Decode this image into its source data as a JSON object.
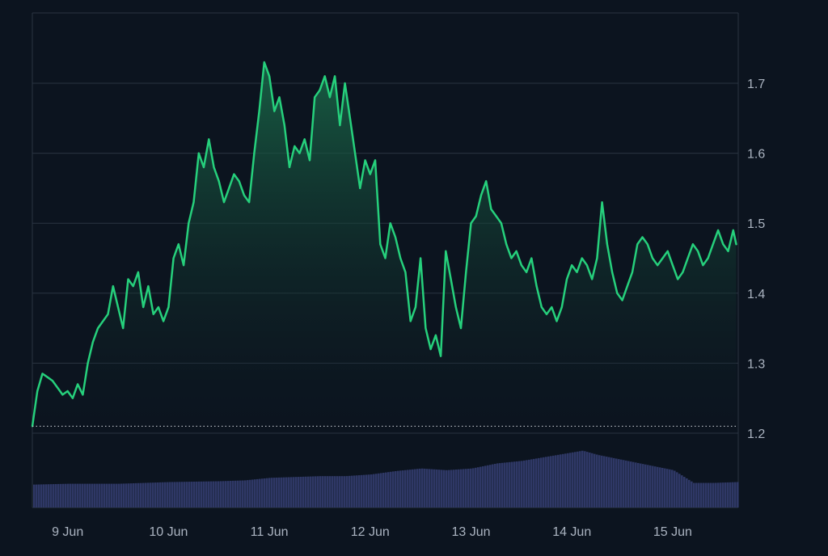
{
  "chart_data": {
    "type": "area",
    "title": "",
    "xlabel": "",
    "ylabel": "",
    "x_tick_labels": [
      "9 Jun",
      "10 Jun",
      "11 Jun",
      "12 Jun",
      "13 Jun",
      "14 Jun",
      "15 Jun"
    ],
    "y_tick_labels": [
      "1.2",
      "1.3",
      "1.4",
      "1.5",
      "1.6",
      "1.7"
    ],
    "y_ticks": [
      1.2,
      1.3,
      1.4,
      1.5,
      1.6,
      1.7
    ],
    "ylim": [
      1.1,
      1.8
    ],
    "xlim": [
      8.65,
      15.65
    ],
    "y_axis_position": "right",
    "grid": "horizontal",
    "baseline_value": 1.21,
    "colors": {
      "line": "#26d07c",
      "area_top": "#1a6b4a",
      "volume": "#2f3866",
      "grid": "#2a3442",
      "text": "#aab3c0",
      "baseline": "#d0d4da"
    },
    "series": [
      {
        "x": [
          8.65,
          8.7,
          8.75,
          8.8,
          8.85,
          8.9,
          8.95,
          9.0,
          9.05,
          9.1,
          9.15,
          9.2,
          9.25,
          9.3,
          9.4,
          9.45,
          9.5,
          9.55,
          9.6,
          9.65,
          9.7,
          9.75,
          9.8,
          9.85,
          9.9,
          9.95,
          10.0,
          10.05,
          10.1,
          10.15,
          10.2,
          10.25,
          10.3,
          10.35,
          10.4,
          10.45,
          10.5,
          10.55,
          10.6,
          10.65,
          10.7,
          10.75,
          10.8,
          10.85,
          10.9,
          10.95,
          11.0,
          11.05,
          11.1,
          11.15,
          11.2,
          11.25,
          11.3,
          11.35,
          11.4,
          11.45,
          11.5,
          11.55,
          11.6,
          11.65,
          11.7,
          11.75,
          11.8,
          11.85,
          11.9,
          11.95,
          12.0,
          12.05,
          12.1,
          12.15,
          12.2,
          12.25,
          12.3,
          12.35,
          12.4,
          12.45,
          12.5,
          12.55,
          12.6,
          12.65,
          12.7,
          12.75,
          12.8,
          12.85,
          12.9,
          12.95,
          13.0,
          13.05,
          13.1,
          13.15,
          13.2,
          13.25,
          13.3,
          13.35,
          13.4,
          13.45,
          13.5,
          13.55,
          13.6,
          13.65,
          13.7,
          13.75,
          13.8,
          13.85,
          13.9,
          13.95,
          14.0,
          14.05,
          14.1,
          14.15,
          14.2,
          14.25,
          14.3,
          14.35,
          14.4,
          14.45,
          14.5,
          14.55,
          14.6,
          14.65,
          14.7,
          14.75,
          14.8,
          14.85,
          14.9,
          14.95,
          15.0,
          15.05,
          15.1,
          15.15,
          15.2,
          15.25,
          15.3,
          15.35,
          15.4,
          15.45,
          15.5,
          15.55,
          15.6,
          15.63
        ],
        "values": [
          1.21,
          1.26,
          1.285,
          1.28,
          1.275,
          1.265,
          1.255,
          1.26,
          1.25,
          1.27,
          1.255,
          1.3,
          1.33,
          1.35,
          1.37,
          1.41,
          1.38,
          1.35,
          1.42,
          1.41,
          1.43,
          1.38,
          1.41,
          1.37,
          1.38,
          1.36,
          1.38,
          1.45,
          1.47,
          1.44,
          1.5,
          1.53,
          1.6,
          1.58,
          1.62,
          1.58,
          1.56,
          1.53,
          1.55,
          1.57,
          1.56,
          1.54,
          1.53,
          1.6,
          1.66,
          1.73,
          1.71,
          1.66,
          1.68,
          1.64,
          1.58,
          1.61,
          1.6,
          1.62,
          1.59,
          1.68,
          1.69,
          1.71,
          1.68,
          1.71,
          1.64,
          1.7,
          1.65,
          1.6,
          1.55,
          1.59,
          1.57,
          1.59,
          1.47,
          1.45,
          1.5,
          1.48,
          1.45,
          1.43,
          1.36,
          1.38,
          1.45,
          1.35,
          1.32,
          1.34,
          1.31,
          1.46,
          1.42,
          1.38,
          1.35,
          1.43,
          1.5,
          1.51,
          1.54,
          1.56,
          1.52,
          1.51,
          1.5,
          1.47,
          1.45,
          1.46,
          1.44,
          1.43,
          1.45,
          1.41,
          1.38,
          1.37,
          1.38,
          1.36,
          1.38,
          1.42,
          1.44,
          1.43,
          1.45,
          1.44,
          1.42,
          1.45,
          1.53,
          1.47,
          1.43,
          1.4,
          1.39,
          1.41,
          1.43,
          1.47,
          1.48,
          1.47,
          1.45,
          1.44,
          1.45,
          1.46,
          1.44,
          1.42,
          1.43,
          1.45,
          1.47,
          1.46,
          1.44,
          1.45,
          1.47,
          1.49,
          1.47,
          1.46,
          1.49,
          1.47
        ]
      }
    ],
    "volume": {
      "x": [
        8.65,
        9.0,
        9.5,
        10.0,
        10.5,
        10.75,
        11.0,
        11.25,
        11.5,
        11.75,
        12.0,
        12.25,
        12.5,
        12.75,
        13.0,
        13.25,
        13.5,
        13.75,
        14.0,
        14.1,
        14.25,
        14.5,
        14.75,
        15.0,
        15.2,
        15.4,
        15.63
      ],
      "values": [
        0.27,
        0.28,
        0.28,
        0.3,
        0.31,
        0.32,
        0.35,
        0.36,
        0.37,
        0.37,
        0.39,
        0.43,
        0.46,
        0.44,
        0.46,
        0.52,
        0.55,
        0.6,
        0.65,
        0.67,
        0.62,
        0.56,
        0.5,
        0.44,
        0.29,
        0.29,
        0.3
      ]
    }
  }
}
